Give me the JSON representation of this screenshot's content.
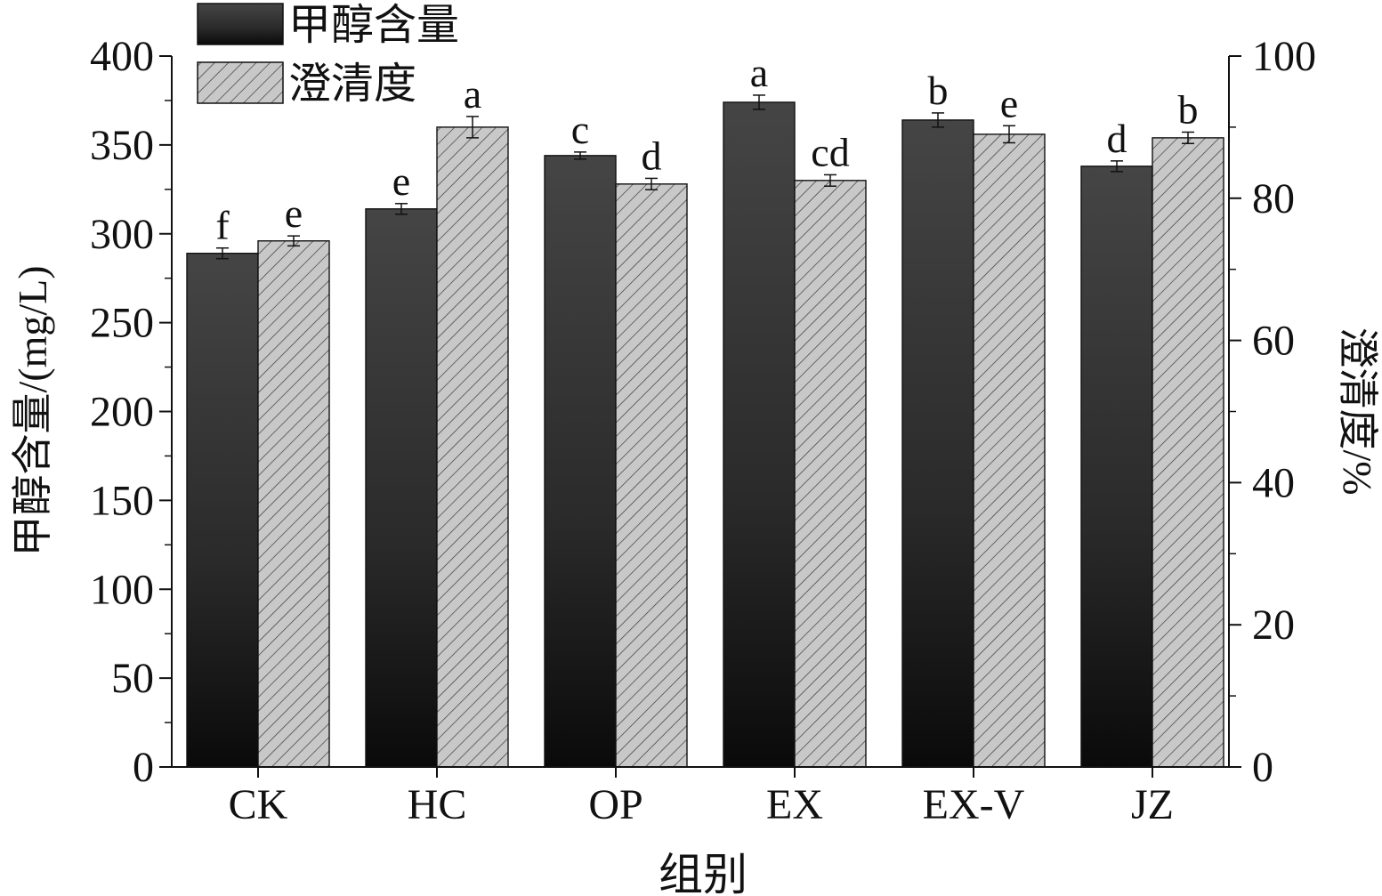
{
  "chart_data": {
    "type": "bar",
    "xlabel": "组别",
    "categories": [
      "CK",
      "HC",
      "OP",
      "EX",
      "EX-V",
      "JZ"
    ],
    "y_left": {
      "label": "甲醇含量/(mg/L)",
      "range": [
        0,
        400
      ],
      "ticks": [
        "0",
        "50",
        "100",
        "150",
        "200",
        "250",
        "300",
        "350",
        "400"
      ]
    },
    "y_right": {
      "label": "澄清度/%",
      "range": [
        0,
        100
      ],
      "ticks": [
        "0",
        "20",
        "40",
        "60",
        "80",
        "100"
      ]
    },
    "series": [
      {
        "name": "甲醇含量",
        "axis": "left",
        "fill": "dark-gradient",
        "values": [
          289,
          314,
          344,
          374,
          364,
          338
        ],
        "errors": [
          3,
          3,
          2,
          4,
          4,
          3
        ],
        "letters": [
          "f",
          "e",
          "c",
          "a",
          "b",
          "d"
        ]
      },
      {
        "name": "澄清度",
        "axis": "right",
        "fill": "hatched-gray",
        "values": [
          74,
          90,
          82,
          82.5,
          89,
          88.5
        ],
        "errors": [
          0.7,
          1.5,
          0.8,
          0.8,
          1.2,
          0.8
        ],
        "letters": [
          "e",
          "a",
          "d",
          "cd",
          "e",
          "b"
        ]
      }
    ],
    "legend_position": "top-left",
    "colors": {
      "dark_top": "#444444",
      "dark_bottom": "#080808",
      "hatch_bg": "#c8c8c8",
      "hatch_line": "#3a3a3a",
      "axis": "#111111"
    }
  }
}
